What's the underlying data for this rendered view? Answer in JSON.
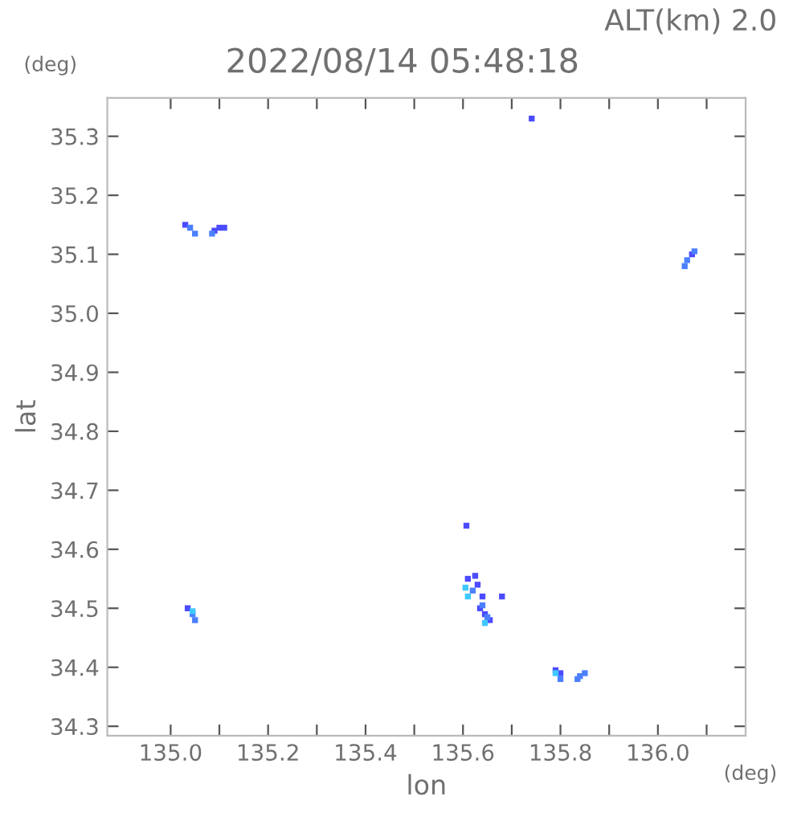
{
  "chart_data": {
    "type": "scatter",
    "title": "2022/08/14 05:48:18",
    "xlabel": "lon",
    "ylabel": "lat",
    "annotations": [
      "ALT(km) 2.0",
      "(deg)",
      "(deg)"
    ],
    "marker": "square",
    "grid": false,
    "legend": false,
    "xlim": [
      134.87,
      136.18
    ],
    "ylim": [
      34.284,
      35.365
    ],
    "xticks": [
      {
        "value": 135.0,
        "label": "135.0"
      },
      {
        "value": 135.1,
        "label": null
      },
      {
        "value": 135.2,
        "label": "135.2"
      },
      {
        "value": 135.3,
        "label": null
      },
      {
        "value": 135.4,
        "label": "135.4"
      },
      {
        "value": 135.5,
        "label": null
      },
      {
        "value": 135.6,
        "label": "135.6"
      },
      {
        "value": 135.7,
        "label": null
      },
      {
        "value": 135.8,
        "label": "135.8"
      },
      {
        "value": 135.9,
        "label": null
      },
      {
        "value": 136.0,
        "label": "136.0"
      },
      {
        "value": 136.1,
        "label": null
      }
    ],
    "yticks": [
      {
        "value": 34.3,
        "label": "34.3"
      },
      {
        "value": 34.4,
        "label": "34.4"
      },
      {
        "value": 34.5,
        "label": "34.5"
      },
      {
        "value": 34.6,
        "label": "34.6"
      },
      {
        "value": 34.7,
        "label": "34.7"
      },
      {
        "value": 34.8,
        "label": "34.8"
      },
      {
        "value": 34.9,
        "label": "34.9"
      },
      {
        "value": 35.0,
        "label": "35.0"
      },
      {
        "value": 35.1,
        "label": "35.1"
      },
      {
        "value": 35.2,
        "label": "35.2"
      },
      {
        "value": 35.3,
        "label": "35.3"
      }
    ],
    "series": [
      {
        "color": "#4b4bff",
        "x": [
          135.741,
          135.03,
          135.09,
          135.1,
          135.11,
          136.07,
          135.035,
          135.607,
          135.61,
          135.625,
          135.63,
          135.64,
          135.635,
          135.645,
          135.655,
          135.68,
          135.79,
          135.8
        ],
        "values": [
          35.33,
          35.15,
          35.14,
          35.145,
          35.145,
          35.1,
          34.5,
          34.64,
          34.55,
          34.555,
          34.54,
          34.52,
          34.5,
          34.49,
          34.48,
          34.52,
          34.395,
          34.39
        ]
      },
      {
        "color": "#4b80ff",
        "x": [
          135.04,
          135.05,
          135.085,
          136.06,
          136.055,
          136.075,
          135.045,
          135.05,
          135.62,
          135.64,
          135.65,
          135.8,
          135.84,
          135.835,
          135.85
        ],
        "values": [
          35.145,
          35.135,
          35.135,
          35.09,
          35.08,
          35.105,
          34.49,
          34.48,
          34.53,
          34.505,
          34.485,
          34.38,
          34.385,
          34.38,
          34.39
        ]
      },
      {
        "color": "#40c8ff",
        "x": [
          135.605,
          135.61,
          135.045,
          135.645,
          135.79
        ],
        "values": [
          34.535,
          34.52,
          34.495,
          34.475,
          34.39
        ]
      }
    ]
  }
}
